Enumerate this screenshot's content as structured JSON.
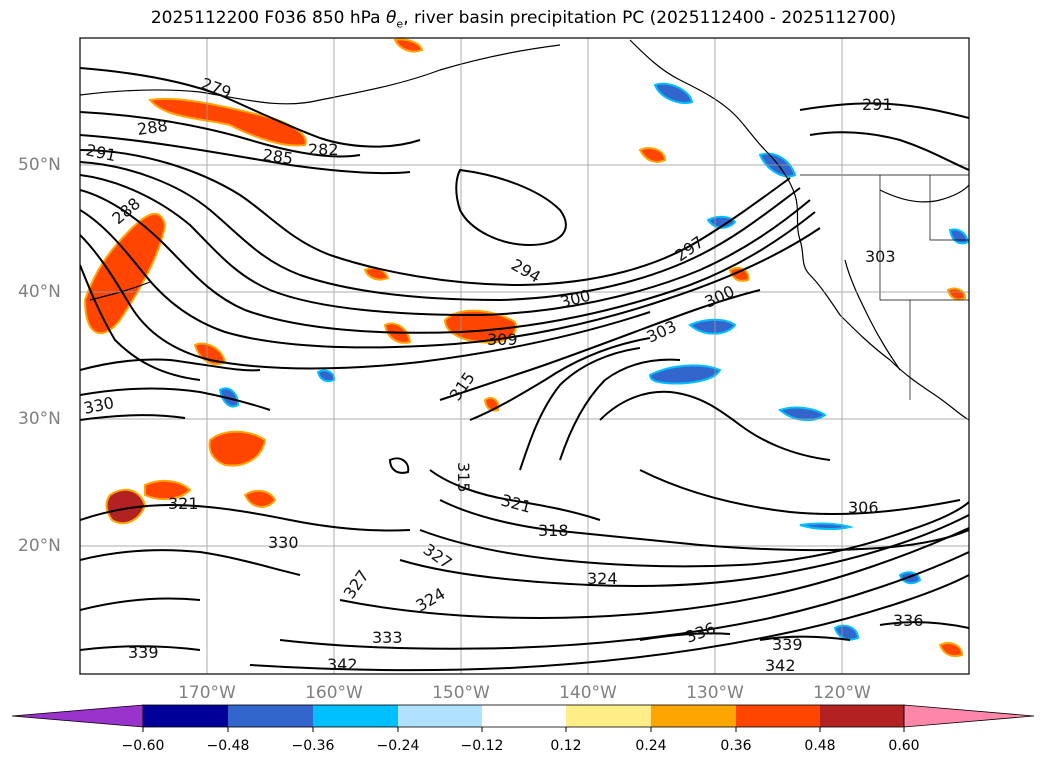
{
  "title": {
    "prefix": "2025112200 F036 850 hPa ",
    "symbol": "θ",
    "subscript": "e",
    "suffix": ", river basin precipitation PC (2025112400 - 2025112700)"
  },
  "map": {
    "projection": "lat-lon",
    "lon_range": [
      -180,
      -110
    ],
    "lat_range": [
      10,
      60
    ],
    "lat_ticks": [
      "50°N",
      "40°N",
      "30°N",
      "20°N"
    ],
    "lon_ticks": [
      "170°W",
      "160°W",
      "150°W",
      "140°W",
      "130°W",
      "120°W"
    ],
    "grid": true
  },
  "contour_labels": [
    "279",
    "288",
    "282",
    "285",
    "291",
    "288",
    "291",
    "294",
    "297",
    "300",
    "300",
    "303",
    "303",
    "306",
    "309",
    "315",
    "315",
    "318",
    "321",
    "321",
    "324",
    "324",
    "327",
    "327",
    "330",
    "330",
    "333",
    "336",
    "336",
    "339",
    "339",
    "342",
    "342"
  ],
  "colorbar": {
    "ticks": [
      "−0.60",
      "−0.48",
      "−0.36",
      "−0.24",
      "−0.12",
      "0.12",
      "0.24",
      "0.36",
      "0.48",
      "0.60"
    ],
    "colors": [
      "#9933cc",
      "#000099",
      "#3366cc",
      "#00bfff",
      "#b0e2ff",
      "#ffffff",
      "#ffee88",
      "#ffa500",
      "#ff4500",
      "#b22222",
      "#ff88aa"
    ]
  }
}
